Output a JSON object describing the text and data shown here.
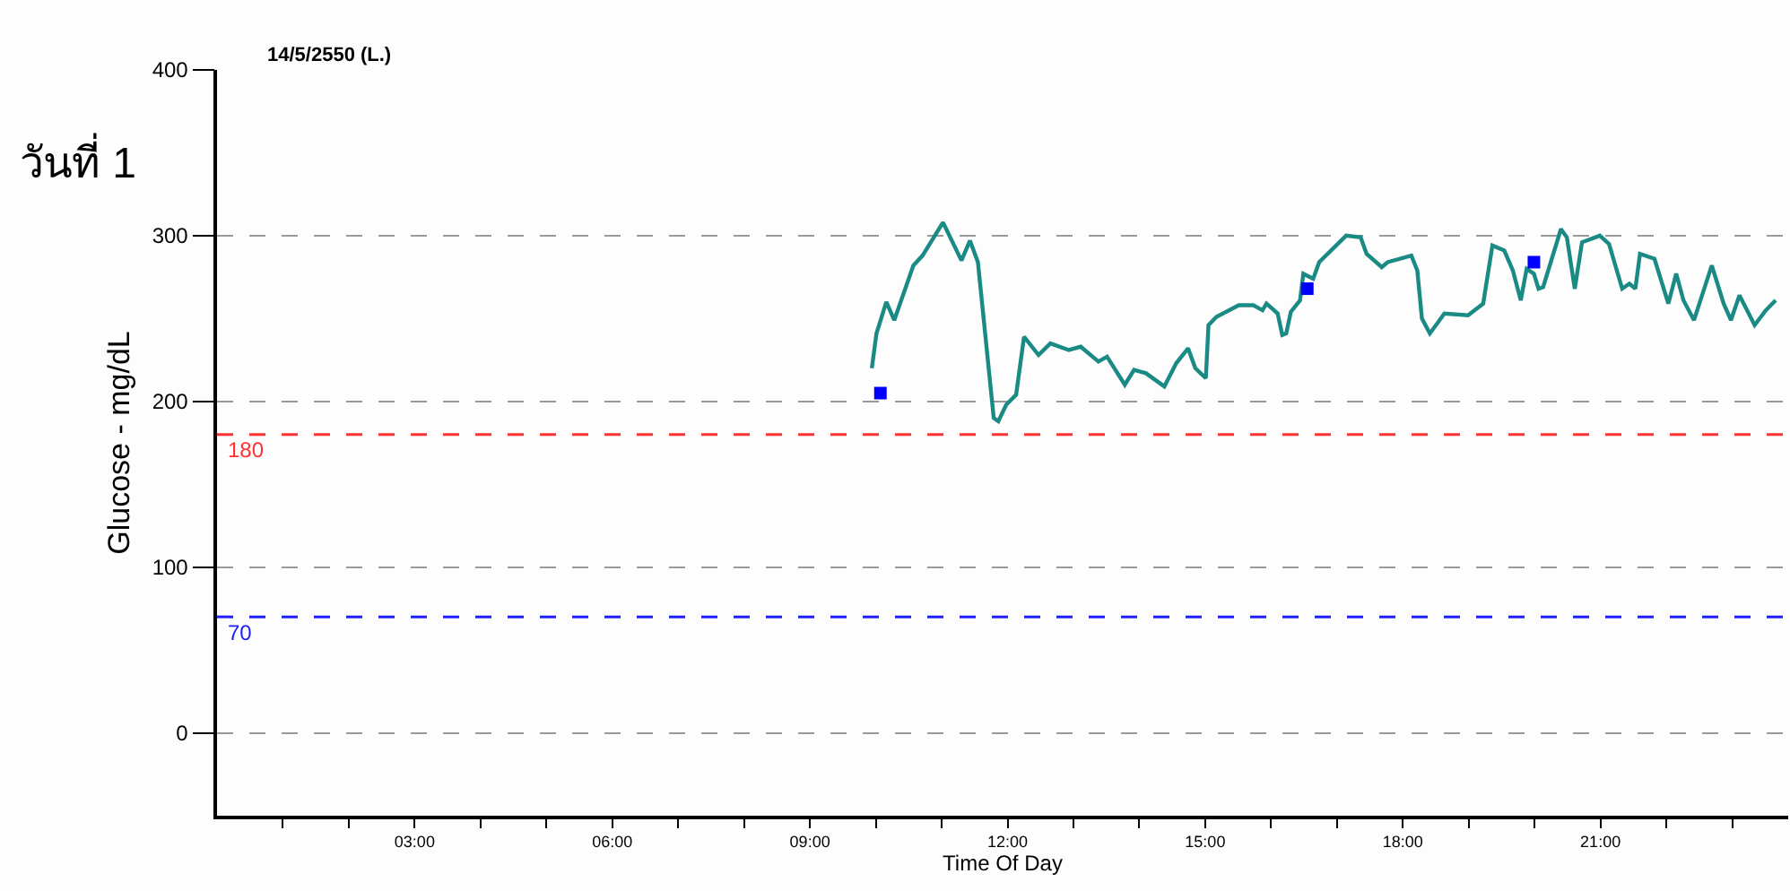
{
  "chart_data": {
    "type": "line",
    "title": "14/5/2550 (L.)",
    "xlabel": "Time Of Day",
    "ylabel": "Glucose - mg/dL",
    "annotations": [
      "วันที่ 1"
    ],
    "xlim": [
      0,
      23.85
    ],
    "xticks": [
      {
        "value": 1,
        "label": null
      },
      {
        "value": 2,
        "label": null
      },
      {
        "value": 3,
        "label": "03:00"
      },
      {
        "value": 4,
        "label": null
      },
      {
        "value": 5,
        "label": null
      },
      {
        "value": 6,
        "label": "06:00"
      },
      {
        "value": 7,
        "label": null
      },
      {
        "value": 8,
        "label": null
      },
      {
        "value": 9,
        "label": "09:00"
      },
      {
        "value": 10,
        "label": null
      },
      {
        "value": 11,
        "label": null
      },
      {
        "value": 12,
        "label": "12:00"
      },
      {
        "value": 13,
        "label": null
      },
      {
        "value": 14,
        "label": null
      },
      {
        "value": 15,
        "label": "15:00"
      },
      {
        "value": 16,
        "label": null
      },
      {
        "value": 17,
        "label": null
      },
      {
        "value": 18,
        "label": "18:00"
      },
      {
        "value": 19,
        "label": null
      },
      {
        "value": 20,
        "label": null
      },
      {
        "value": 21,
        "label": "21:00"
      },
      {
        "value": 22,
        "label": null
      },
      {
        "value": 23,
        "label": null
      }
    ],
    "ylim": [
      -50,
      400
    ],
    "yticks": [
      0,
      100,
      200,
      300,
      400
    ],
    "grid": "y",
    "legend": false,
    "series": [
      {
        "color": "#1a8a84",
        "marker": "none",
        "x": [
          9.94,
          10.01,
          10.16,
          10.28,
          10.57,
          10.71,
          11.02,
          11.3,
          11.43,
          11.55,
          11.79,
          11.86,
          11.98,
          12.13,
          12.25,
          12.47,
          12.65,
          12.93,
          13.11,
          13.38,
          13.51,
          13.78,
          13.92,
          14.1,
          14.38,
          14.56,
          14.74,
          14.85,
          15.01,
          15.05,
          15.17,
          15.51,
          15.73,
          15.87,
          15.93,
          16.1,
          16.17,
          16.23,
          16.3,
          16.44,
          16.49,
          16.64,
          16.73,
          17.14,
          17.36,
          17.45,
          17.68,
          17.77,
          18.13,
          18.22,
          18.29,
          18.41,
          18.54,
          18.63,
          18.99,
          19.22,
          19.36,
          19.54,
          19.67,
          19.79,
          19.88,
          19.99,
          20.06,
          20.13,
          20.4,
          20.49,
          20.61,
          20.72,
          20.99,
          21.13,
          21.33,
          21.44,
          21.53,
          21.6,
          21.82,
          22.03,
          22.15,
          22.26,
          22.42,
          22.69,
          22.87,
          22.98,
          23.11,
          23.34,
          23.51,
          23.66
        ],
        "values": [
          220,
          241,
          260,
          249,
          282,
          288,
          308,
          285,
          297,
          284,
          190,
          188,
          198,
          204,
          239,
          228,
          235,
          231,
          233,
          224,
          227,
          210,
          219,
          217,
          209,
          223,
          232,
          220,
          214,
          246,
          251,
          258,
          258,
          255,
          259,
          253,
          240,
          241,
          254,
          261,
          277,
          274,
          284,
          300,
          299,
          289,
          281,
          284,
          288,
          279,
          250,
          241,
          248,
          253,
          252,
          259,
          294,
          291,
          279,
          261,
          280,
          277,
          268,
          269,
          304,
          299,
          268,
          296,
          300,
          295,
          268,
          271,
          268,
          289,
          286,
          259,
          277,
          261,
          249,
          282,
          259,
          249,
          264,
          246,
          255,
          261
        ]
      },
      {
        "type": "scatter",
        "color": "#0000ff",
        "marker": "square",
        "x": [
          10.07,
          16.55,
          19.99
        ],
        "values": [
          205,
          268,
          284
        ]
      }
    ],
    "ref_lines": [
      {
        "axis": "y",
        "value": 180,
        "label": "180",
        "color": "#ff3030",
        "line_style": "dashed"
      },
      {
        "axis": "y",
        "value": 70,
        "label": "70",
        "color": "#2020ff",
        "line_style": "dashed"
      }
    ]
  }
}
